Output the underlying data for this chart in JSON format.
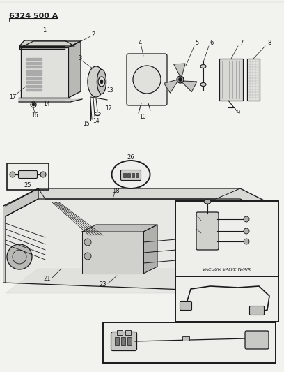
{
  "title": "6324 500 A",
  "bg_color": "#f2f2ee",
  "line_color": "#1a1a1a",
  "vacuum_label": "VACUUM VALVE W/AIR",
  "fig_width": 4.08,
  "fig_height": 5.33,
  "dpi": 100
}
